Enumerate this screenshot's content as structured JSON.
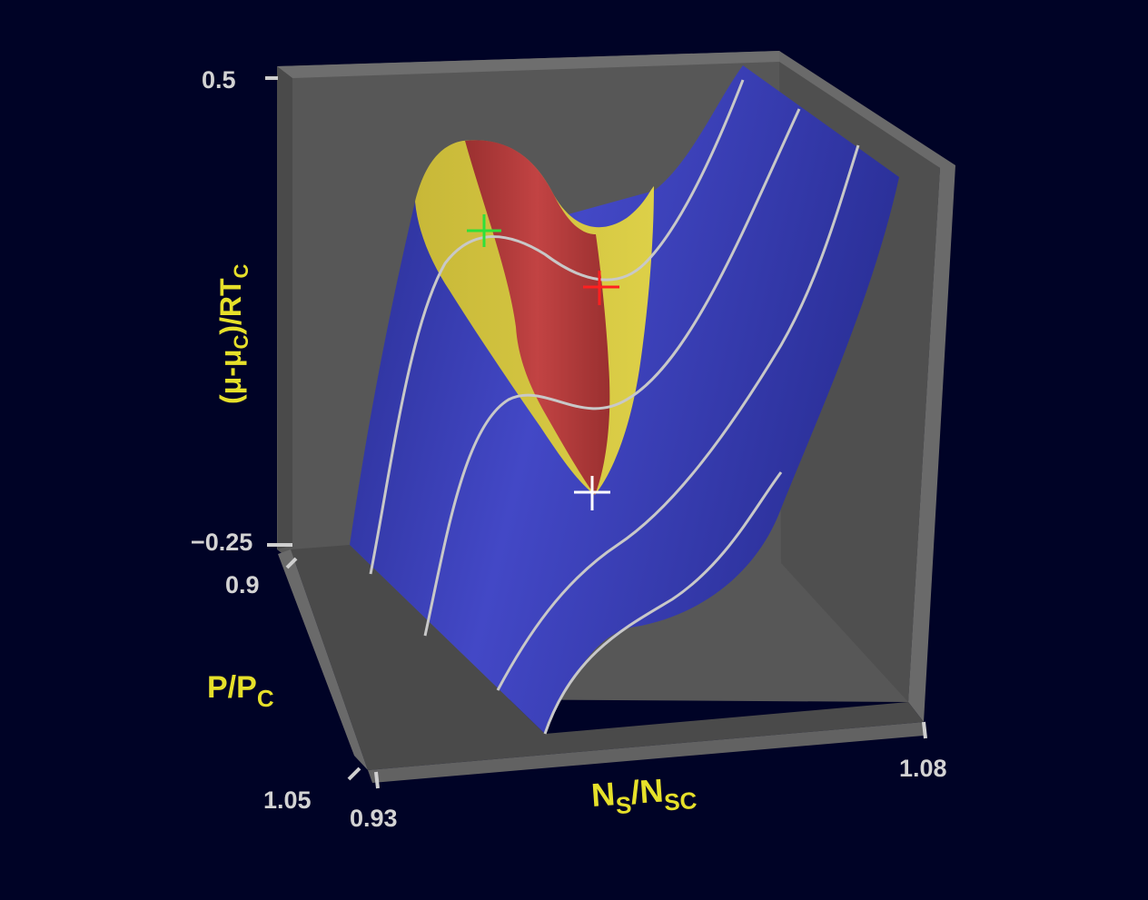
{
  "colors": {
    "background": "#000326",
    "box_wall": "#575757",
    "box_edge": "#6a6a6a",
    "surface_stable": "#3a3fb4",
    "surface_metastable": "#d4c43a",
    "surface_unstable": "#b43a3a",
    "isobar_line": "#c8c8c8",
    "axis_label": "#e6e02a",
    "tick_label": "#d3d3d3",
    "marker_green": "#2fe03a",
    "marker_red": "#ff2020",
    "marker_white": "#ffffff"
  },
  "chart_data": {
    "type": "surface",
    "axes": {
      "z": {
        "ticks": [
          "0.5",
          "−0.25"
        ],
        "range": [
          -0.25,
          0.5
        ]
      },
      "y": {
        "ticks": [
          "0.9",
          "1.05"
        ],
        "range": [
          0.9,
          1.05
        ]
      },
      "x": {
        "ticks": [
          "0.93",
          "1.08"
        ],
        "range": [
          0.93,
          1.08
        ]
      }
    },
    "regions": [
      "stable",
      "metastable",
      "unstable"
    ],
    "isobar_count": 4,
    "markers": [
      {
        "name": "green-cross",
        "color": "#2fe03a"
      },
      {
        "name": "red-cross",
        "color": "#ff2020"
      },
      {
        "name": "white-cross",
        "color": "#ffffff"
      }
    ]
  },
  "labels": {
    "z_axis": {
      "a": "(μ-μ",
      "sub1": "C",
      "b": ")/RT",
      "sub2": "C"
    },
    "y_axis": {
      "a": "P/P",
      "sub": "C"
    },
    "x_axis": {
      "a": "N",
      "sub1": "S",
      "b": "/N",
      "sub2": "SC"
    }
  }
}
